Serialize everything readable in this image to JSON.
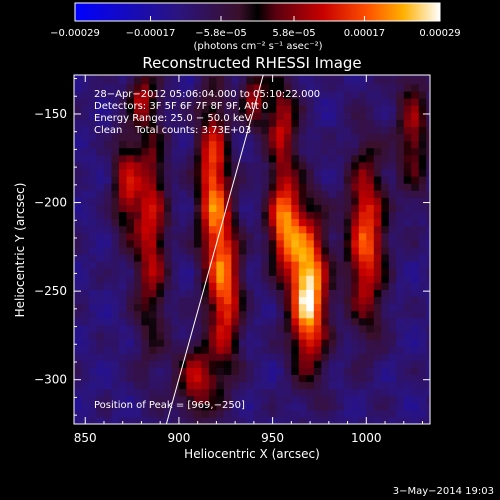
{
  "chart_data": {
    "type": "heatmap",
    "title": "Reconstructed RHESSI Image",
    "xlabel": "Heliocentric X (arcsec)",
    "ylabel": "Heliocentric Y (arcsec)",
    "xlim": [
      844,
      1034
    ],
    "ylim": [
      -325,
      -128
    ],
    "x_ticks": [
      850,
      900,
      950,
      1000
    ],
    "y_ticks": [
      -300,
      -250,
      -200,
      -150
    ],
    "x_tick_labels": [
      "850",
      "900",
      "950",
      "1000"
    ],
    "y_tick_labels": [
      "−300",
      "−250",
      "−200",
      "−150"
    ],
    "colorbar": {
      "ticks": [
        -0.00029,
        -0.00017,
        -5.8e-05,
        5.8e-05,
        0.00017,
        0.00029
      ],
      "tick_labels": [
        "−0.00029",
        "−0.00017",
        "−5.8e−05",
        "5.8e−05",
        "0.00017",
        "0.00029"
      ],
      "range": [
        -0.00029,
        0.00029
      ],
      "units_label": "(photons cm⁻² s⁻¹ asec⁻²)"
    },
    "annotations": [
      "28−Apr−2012 05:06:04.000 to 05:10:22.000",
      "Detectors: 3F 5F 6F 7F 8F 9F, Att 0",
      "Energy Range: 25.0 − 50.0 keV",
      "Clean    Total counts: 3.73E+03"
    ],
    "peak_label": "Position of Peak = [969,−250]",
    "peak": [
      969,
      -250
    ],
    "limb_line": [
      [
        892,
        -330
      ],
      [
        945,
        -128
      ]
    ],
    "sources": [
      {
        "x": 969,
        "y": -250,
        "sx": 7,
        "sy": 30,
        "amp": 1.0
      },
      {
        "x": 956,
        "y": -210,
        "sx": 6,
        "sy": 20,
        "amp": 0.75
      },
      {
        "x": 1000,
        "y": -220,
        "sx": 7,
        "sy": 35,
        "amp": 0.7
      },
      {
        "x": 925,
        "y": -250,
        "sx": 6,
        "sy": 30,
        "amp": 0.65
      },
      {
        "x": 918,
        "y": -190,
        "sx": 6,
        "sy": 35,
        "amp": 0.7
      },
      {
        "x": 885,
        "y": -215,
        "sx": 6,
        "sy": 45,
        "amp": 0.55
      },
      {
        "x": 872,
        "y": -190,
        "sx": 5,
        "sy": 20,
        "amp": 0.5
      },
      {
        "x": 955,
        "y": -155,
        "sx": 6,
        "sy": 18,
        "amp": 0.5
      },
      {
        "x": 910,
        "y": -300,
        "sx": 8,
        "sy": 15,
        "amp": 0.5
      },
      {
        "x": 1025,
        "y": -160,
        "sx": 6,
        "sy": 25,
        "amp": 0.45
      },
      {
        "x": 940,
        "y": -140,
        "sx": 5,
        "sy": 12,
        "amp": 0.45
      },
      {
        "x": 880,
        "y": -140,
        "sx": 5,
        "sy": 10,
        "amp": 0.4
      }
    ]
  },
  "footer": {
    "date": "3−May−2014 19:03"
  }
}
